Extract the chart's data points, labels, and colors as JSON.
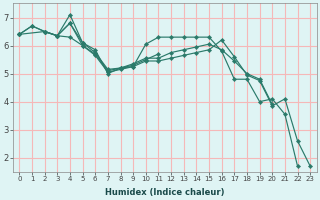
{
  "background_color": "#dff4f4",
  "grid_color": "#f5b8b8",
  "line_color": "#2a7a6a",
  "xlabel": "Humidex (Indice chaleur)",
  "xlim": [
    -0.5,
    23.5
  ],
  "ylim": [
    1.5,
    7.5
  ],
  "yticks": [
    2,
    3,
    4,
    5,
    6,
    7
  ],
  "xticks": [
    0,
    1,
    2,
    3,
    4,
    5,
    6,
    7,
    8,
    9,
    10,
    11,
    12,
    13,
    14,
    15,
    16,
    17,
    18,
    19,
    20,
    21,
    22,
    23
  ],
  "lines": [
    {
      "x": [
        0,
        1,
        2,
        3,
        4,
        5,
        6,
        7,
        8,
        9,
        10,
        11,
        12,
        13,
        14,
        15,
        16,
        17,
        18,
        19,
        20,
        21,
        22
      ],
      "y": [
        6.4,
        6.7,
        6.5,
        6.35,
        7.1,
        6.1,
        5.85,
        5.0,
        5.2,
        5.25,
        6.05,
        6.3,
        6.3,
        6.3,
        6.3,
        6.3,
        5.8,
        4.8,
        4.8,
        4.0,
        4.1,
        3.55,
        1.7
      ]
    },
    {
      "x": [
        0,
        2,
        3,
        4,
        5,
        6,
        7,
        8,
        9,
        10,
        11,
        12,
        13,
        14,
        15,
        16,
        17,
        18,
        19,
        20
      ],
      "y": [
        6.4,
        6.5,
        6.35,
        6.8,
        6.1,
        5.75,
        5.15,
        5.2,
        5.35,
        5.55,
        5.55,
        5.75,
        5.85,
        5.95,
        6.05,
        5.85,
        5.45,
        5.0,
        4.8,
        3.9
      ]
    },
    {
      "x": [
        0,
        1,
        2,
        3,
        4,
        5,
        6,
        7,
        8,
        9,
        10,
        11,
        12,
        13,
        14,
        15,
        16,
        17,
        18,
        19,
        20,
        21,
        22,
        23
      ],
      "y": [
        6.4,
        null,
        6.5,
        6.35,
        6.3,
        6.0,
        5.65,
        5.05,
        5.15,
        5.25,
        5.45,
        5.45,
        5.55,
        5.65,
        5.75,
        5.85,
        6.2,
        5.6,
        4.95,
        4.75,
        3.85,
        4.1,
        2.6,
        1.7
      ]
    },
    {
      "x": [
        0,
        1,
        2,
        3,
        4,
        5,
        6,
        7,
        8,
        9,
        10,
        11
      ],
      "y": [
        6.4,
        6.7,
        6.5,
        6.35,
        6.8,
        6.0,
        5.7,
        5.1,
        5.2,
        5.3,
        5.5,
        5.7
      ]
    }
  ]
}
